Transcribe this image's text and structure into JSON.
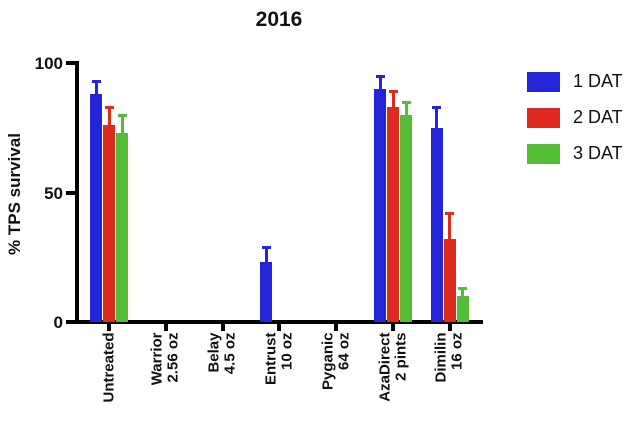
{
  "chart_data": {
    "type": "bar",
    "title": "2016",
    "xlabel": "",
    "ylabel": "% TPS survival",
    "ylim": [
      0,
      100
    ],
    "yticks": [
      0,
      50,
      100
    ],
    "grid": false,
    "legend_position": "right",
    "categories": [
      "Untreated",
      "Warrior\n2.56 oz",
      "Belay\n4.5 oz",
      "Entrust\n10 oz",
      "Pyganic\n64 oz",
      "AzaDirect\n2 pints",
      "Dimilin\n16 oz"
    ],
    "series": [
      {
        "name": "1 DAT",
        "color": "#2424d8",
        "values": [
          88,
          0,
          0,
          23,
          0,
          90,
          75
        ],
        "errors": [
          5,
          0,
          0,
          6,
          0,
          5,
          8
        ]
      },
      {
        "name": "2 DAT",
        "color": "#df2a1f",
        "values": [
          76,
          0,
          0,
          0,
          0,
          83,
          32
        ],
        "errors": [
          7,
          0,
          0,
          0,
          0,
          6,
          10
        ]
      },
      {
        "name": "3 DAT",
        "color": "#55bd35",
        "values": [
          73,
          0,
          0,
          0,
          0,
          80,
          10
        ],
        "errors": [
          7,
          0,
          0,
          0,
          0,
          5,
          3
        ]
      }
    ]
  }
}
